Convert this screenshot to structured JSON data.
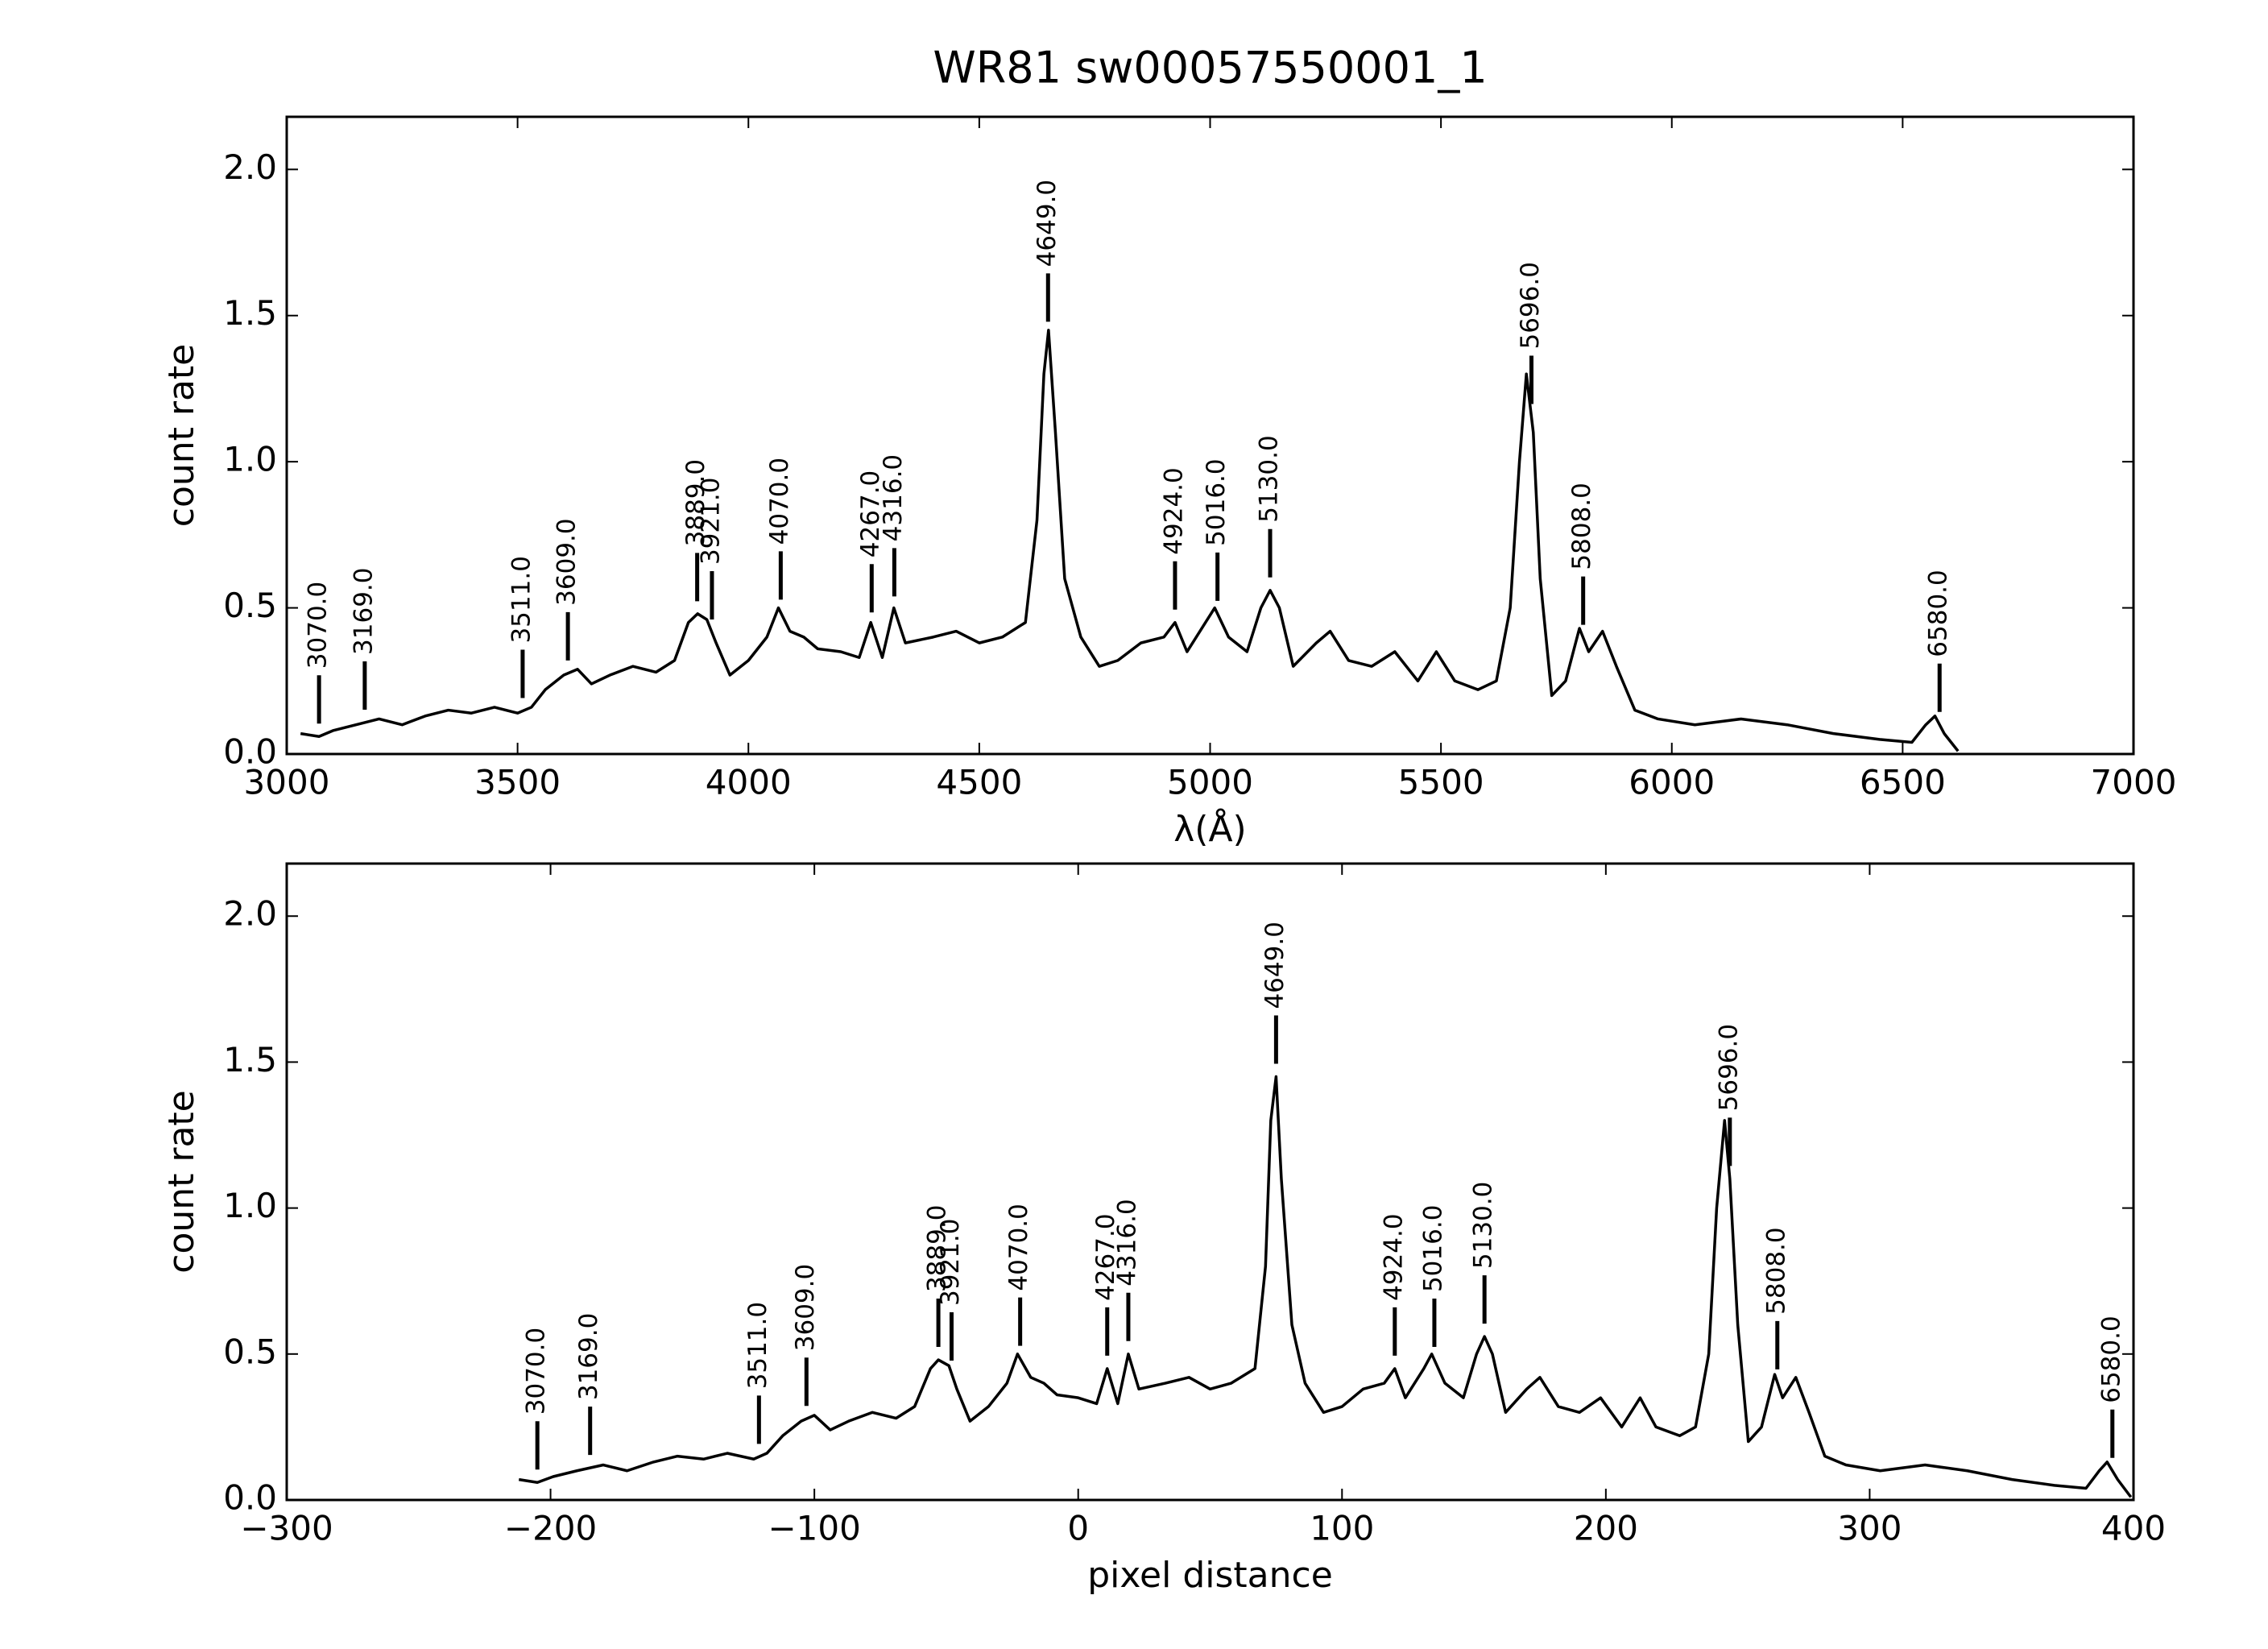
{
  "chart_data": [
    {
      "type": "line",
      "title": "WR81  sw00057550001_1",
      "x_label": "λ(Å)",
      "y_label": "count rate",
      "color": "#000000",
      "xlim": [
        3000,
        7000
      ],
      "ylim": [
        0,
        2.18
      ],
      "xticks": [
        3000,
        3500,
        4000,
        4500,
        5000,
        5500,
        6000,
        6500,
        7000
      ],
      "yticks": [
        {
          "value": 0,
          "label": "0.0"
        },
        0.5,
        {
          "value": 1,
          "label": "1.0"
        },
        1.5,
        {
          "value": 2,
          "label": "2.0"
        }
      ],
      "x": [
        3030,
        3070,
        3100,
        3150,
        3200,
        3250,
        3300,
        3350,
        3400,
        3450,
        3500,
        3530,
        3560,
        3600,
        3630,
        3660,
        3700,
        3750,
        3800,
        3840,
        3870,
        3890,
        3910,
        3930,
        3960,
        4000,
        4040,
        4065,
        4090,
        4120,
        4150,
        4200,
        4240,
        4265,
        4290,
        4315,
        4340,
        4400,
        4450,
        4500,
        4550,
        4600,
        4625,
        4640,
        4650,
        4665,
        4685,
        4720,
        4760,
        4800,
        4850,
        4900,
        4924,
        4950,
        4990,
        5010,
        5040,
        5080,
        5110,
        5130,
        5150,
        5180,
        5230,
        5260,
        5300,
        5350,
        5400,
        5450,
        5490,
        5530,
        5580,
        5620,
        5650,
        5670,
        5685,
        5700,
        5715,
        5740,
        5770,
        5800,
        5820,
        5850,
        5880,
        5920,
        5970,
        6050,
        6150,
        6250,
        6350,
        6450,
        6520,
        6550,
        6570,
        6590,
        6620
      ],
      "values": [
        0.07,
        0.06,
        0.08,
        0.1,
        0.12,
        0.1,
        0.13,
        0.15,
        0.14,
        0.16,
        0.14,
        0.16,
        0.22,
        0.27,
        0.29,
        0.24,
        0.27,
        0.3,
        0.28,
        0.32,
        0.45,
        0.48,
        0.46,
        0.38,
        0.27,
        0.32,
        0.4,
        0.5,
        0.42,
        0.4,
        0.36,
        0.35,
        0.33,
        0.45,
        0.33,
        0.5,
        0.38,
        0.4,
        0.42,
        0.38,
        0.4,
        0.45,
        0.8,
        1.3,
        1.45,
        1.1,
        0.6,
        0.4,
        0.3,
        0.32,
        0.38,
        0.4,
        0.45,
        0.35,
        0.45,
        0.5,
        0.4,
        0.35,
        0.5,
        0.56,
        0.5,
        0.3,
        0.38,
        0.42,
        0.32,
        0.3,
        0.35,
        0.25,
        0.35,
        0.25,
        0.22,
        0.25,
        0.5,
        1.0,
        1.3,
        1.1,
        0.6,
        0.2,
        0.25,
        0.43,
        0.35,
        0.42,
        0.3,
        0.15,
        0.12,
        0.1,
        0.12,
        0.1,
        0.07,
        0.05,
        0.04,
        0.1,
        0.13,
        0.07,
        0.01
      ],
      "annotations": [
        {
          "x": 3070,
          "label": "3070.0"
        },
        {
          "x": 3169,
          "label": "3169.0"
        },
        {
          "x": 3511,
          "label": "3511.0"
        },
        {
          "x": 3609,
          "label": "3609.0"
        },
        {
          "x": 3889,
          "label": "3889.0"
        },
        {
          "x": 3921,
          "label": "3921.0"
        },
        {
          "x": 4070,
          "label": "4070.0"
        },
        {
          "x": 4267,
          "label": "4267.0"
        },
        {
          "x": 4316,
          "label": "4316.0"
        },
        {
          "x": 4649,
          "label": "4649.0"
        },
        {
          "x": 4924,
          "label": "4924.0"
        },
        {
          "x": 5016,
          "label": "5016.0"
        },
        {
          "x": 5130,
          "label": "5130.0"
        },
        {
          "x": 5696,
          "label": "5696.0"
        },
        {
          "x": 5808,
          "label": "5808.0"
        },
        {
          "x": 6580,
          "label": "6580.0"
        }
      ]
    },
    {
      "type": "line",
      "x_label": "pixel distance",
      "y_label": "count rate",
      "color": "#000000",
      "xlim": [
        -300,
        400
      ],
      "ylim": [
        0,
        2.18
      ],
      "xticks": [
        {
          "value": -300,
          "label": "−300"
        },
        {
          "value": -200,
          "label": "−200"
        },
        {
          "value": -100,
          "label": "−100"
        },
        0,
        100,
        200,
        300,
        400
      ],
      "yticks": [
        {
          "value": 0,
          "label": "0.0"
        },
        0.5,
        {
          "value": 1,
          "label": "1.0"
        },
        1.5,
        {
          "value": 2,
          "label": "2.0"
        }
      ],
      "x": [
        -212,
        -205,
        -199,
        -190,
        -180,
        -171,
        -161,
        -152,
        -142,
        -133,
        -123,
        -118,
        -112,
        -105,
        -100,
        -94,
        -87,
        -78,
        -69,
        -62,
        -56,
        -53,
        -49,
        -46,
        -41,
        -34,
        -27,
        -23,
        -18,
        -13,
        -8,
        0,
        7,
        11,
        15,
        19,
        23,
        33,
        42,
        50,
        58,
        67,
        71,
        73,
        75,
        77,
        81,
        86,
        93,
        100,
        108,
        116,
        120,
        124,
        131,
        134,
        139,
        146,
        151,
        154,
        157,
        162,
        170,
        175,
        182,
        190,
        198,
        206,
        213,
        219,
        228,
        234,
        239,
        242,
        245,
        247,
        250,
        254,
        259,
        264,
        267,
        272,
        277,
        283,
        291,
        304,
        321,
        337,
        354,
        370,
        382,
        387,
        390,
        394,
        399
      ],
      "values": [
        0.07,
        0.06,
        0.08,
        0.1,
        0.12,
        0.1,
        0.13,
        0.15,
        0.14,
        0.16,
        0.14,
        0.16,
        0.22,
        0.27,
        0.29,
        0.24,
        0.27,
        0.3,
        0.28,
        0.32,
        0.45,
        0.48,
        0.46,
        0.38,
        0.27,
        0.32,
        0.4,
        0.5,
        0.42,
        0.4,
        0.36,
        0.35,
        0.33,
        0.45,
        0.33,
        0.5,
        0.38,
        0.4,
        0.42,
        0.38,
        0.4,
        0.45,
        0.8,
        1.3,
        1.45,
        1.1,
        0.6,
        0.4,
        0.3,
        0.32,
        0.38,
        0.4,
        0.45,
        0.35,
        0.45,
        0.5,
        0.4,
        0.35,
        0.5,
        0.56,
        0.5,
        0.3,
        0.38,
        0.42,
        0.32,
        0.3,
        0.35,
        0.25,
        0.35,
        0.25,
        0.22,
        0.25,
        0.5,
        1.0,
        1.3,
        1.1,
        0.6,
        0.2,
        0.25,
        0.43,
        0.35,
        0.42,
        0.3,
        0.15,
        0.12,
        0.1,
        0.12,
        0.1,
        0.07,
        0.05,
        0.04,
        0.1,
        0.13,
        0.07,
        0.01
      ],
      "annotations": [
        {
          "x": -205,
          "label": "3070.0"
        },
        {
          "x": -185,
          "label": "3169.0"
        },
        {
          "x": -121,
          "label": "3511.0"
        },
        {
          "x": -103,
          "label": "3609.0"
        },
        {
          "x": -53,
          "label": "3889.0"
        },
        {
          "x": -48,
          "label": "3921.0"
        },
        {
          "x": -22,
          "label": "4070.0"
        },
        {
          "x": 11,
          "label": "4267.0"
        },
        {
          "x": 19,
          "label": "4316.0"
        },
        {
          "x": 75,
          "label": "4649.0"
        },
        {
          "x": 120,
          "label": "4924.0"
        },
        {
          "x": 135,
          "label": "5016.0"
        },
        {
          "x": 154,
          "label": "5130.0"
        },
        {
          "x": 247,
          "label": "5696.0"
        },
        {
          "x": 265,
          "label": "5808.0"
        },
        {
          "x": 392,
          "label": "6580.0"
        }
      ]
    }
  ]
}
